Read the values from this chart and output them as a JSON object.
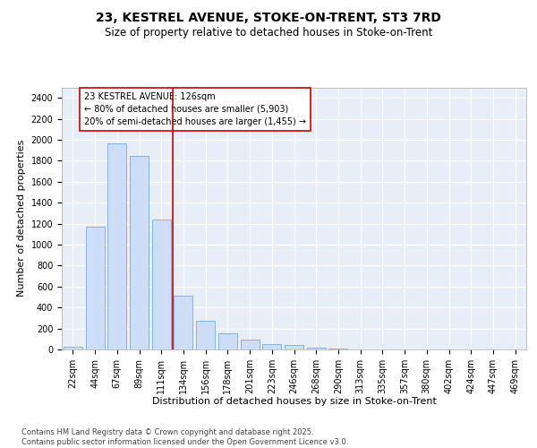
{
  "title_line1": "23, KESTREL AVENUE, STOKE-ON-TRENT, ST3 7RD",
  "title_line2": "Size of property relative to detached houses in Stoke-on-Trent",
  "xlabel": "Distribution of detached houses by size in Stoke-on-Trent",
  "ylabel": "Number of detached properties",
  "categories": [
    "22sqm",
    "44sqm",
    "67sqm",
    "89sqm",
    "111sqm",
    "134sqm",
    "156sqm",
    "178sqm",
    "201sqm",
    "223sqm",
    "246sqm",
    "268sqm",
    "290sqm",
    "313sqm",
    "335sqm",
    "357sqm",
    "380sqm",
    "402sqm",
    "424sqm",
    "447sqm",
    "469sqm"
  ],
  "values": [
    28,
    1170,
    1970,
    1850,
    1240,
    510,
    270,
    155,
    90,
    48,
    40,
    18,
    12,
    0,
    0,
    0,
    0,
    0,
    0,
    0,
    0
  ],
  "bar_color": "#ccddf5",
  "bar_edge_color": "#7aabda",
  "vline_color": "#cc0000",
  "vline_x": 4.5,
  "annotation_text_line1": "23 KESTREL AVENUE: 126sqm",
  "annotation_text_line2": "← 80% of detached houses are smaller (5,903)",
  "annotation_text_line3": "20% of semi-detached houses are larger (1,455) →",
  "annotation_box_edge": "#cc0000",
  "ylim_max": 2500,
  "yticks": [
    0,
    200,
    400,
    600,
    800,
    1000,
    1200,
    1400,
    1600,
    1800,
    2000,
    2200,
    2400
  ],
  "bg_color": "#e8eef8",
  "grid_color": "#ffffff",
  "footer_text": "Contains HM Land Registry data © Crown copyright and database right 2025.\nContains public sector information licensed under the Open Government Licence v3.0.",
  "title_fontsize": 10,
  "subtitle_fontsize": 8.5,
  "axis_label_fontsize": 8,
  "tick_fontsize": 7,
  "annotation_fontsize": 7,
  "footer_fontsize": 6
}
